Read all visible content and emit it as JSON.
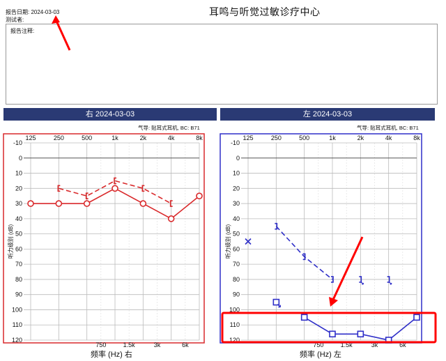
{
  "header": {
    "clinic_title": "耳鸣与听觉过敏诊疗中心",
    "report_date": "报告日期: 2024-03-03",
    "tester": "测试者:",
    "notes_label": "报告注释:"
  },
  "colors": {
    "right_ear": "#d9292b",
    "left_ear": "#2f2fc8",
    "header_bg": "#2a3a74",
    "highlight": "#ff0000"
  },
  "chart_data": [
    {
      "type": "line",
      "title": "右 2024-03-03",
      "legend_note": "气导: 贴耳式耳机, BC: B71",
      "ylabel": "听力级别 (dB)",
      "xlabel": "频率 (Hz) 右",
      "x_ticks_top": [
        "125",
        "250",
        "500",
        "1k",
        "2k",
        "4k",
        "8k"
      ],
      "x_ticks_bottom": [
        "750",
        "1.5k",
        "3k",
        "6k"
      ],
      "y_ticks": [
        -10,
        0,
        10,
        20,
        30,
        40,
        50,
        60,
        70,
        80,
        90,
        100,
        110,
        120
      ],
      "ylim": [
        -10,
        120
      ],
      "series": [
        {
          "marker": "circle",
          "dashed": false,
          "x": [
            "125",
            "250",
            "500",
            "1k",
            "2k",
            "4k",
            "8k"
          ],
          "values": [
            30,
            30,
            30,
            20,
            30,
            40,
            25
          ]
        },
        {
          "marker": "bracket",
          "dashed": true,
          "x": [
            "250",
            "500",
            "1k",
            "2k",
            "4k"
          ],
          "values": [
            20,
            25,
            15,
            20,
            30
          ]
        }
      ]
    },
    {
      "type": "line",
      "title": "左 2024-03-03",
      "legend_note": "气导: 贴耳式耳机, BC: B71",
      "ylabel": "听力级别 (dB)",
      "xlabel": "频率 (Hz) 左",
      "x_ticks_top": [
        "125",
        "250",
        "500",
        "1k",
        "2k",
        "4k",
        "8k"
      ],
      "x_ticks_bottom": [
        "750",
        "1.5k",
        "3k",
        "6k"
      ],
      "y_ticks": [
        -10,
        0,
        10,
        20,
        30,
        40,
        50,
        60,
        70,
        80,
        90,
        100,
        110,
        120
      ],
      "ylim": [
        -10,
        120
      ],
      "series": [
        {
          "marker": "square",
          "dashed": false,
          "x": [
            "500",
            "1k",
            "2k",
            "4k",
            "8k"
          ],
          "values": [
            105,
            116,
            116,
            120,
            105
          ]
        },
        {
          "marker": "bracket",
          "dashed": true,
          "x": [
            "250",
            "500",
            "1k"
          ],
          "values": [
            45,
            65,
            80
          ]
        },
        {
          "marker": "bracket-arrow",
          "dashed": false,
          "connected": false,
          "x": [
            "2k",
            "4k"
          ],
          "values": [
            80,
            80
          ]
        },
        {
          "marker": "square-arrow",
          "dashed": false,
          "connected": false,
          "x": [
            "250"
          ],
          "values": [
            95
          ]
        },
        {
          "marker": "x",
          "dashed": false,
          "connected": false,
          "x": [
            "125"
          ],
          "values": [
            55
          ]
        }
      ]
    }
  ]
}
